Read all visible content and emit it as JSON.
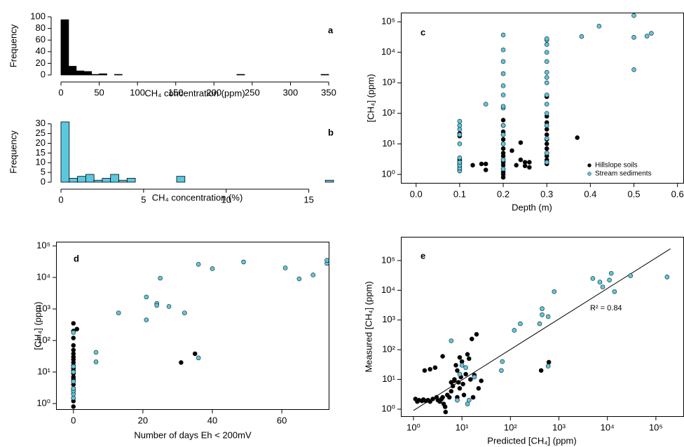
{
  "chart_data": [
    {
      "type": "histogram",
      "label": "a",
      "ylabel": "Frequency",
      "xlabel": "CH₄ concentration (ppm)",
      "color": "#000000",
      "bins": [
        0,
        10,
        20,
        30,
        40,
        50,
        60,
        70,
        80,
        90,
        100,
        110,
        120,
        130,
        140,
        150,
        160,
        170,
        180,
        190,
        200,
        210,
        220,
        230,
        240,
        250,
        260,
        270,
        280,
        290,
        300,
        310,
        320,
        330,
        340,
        350
      ],
      "counts": [
        95,
        15,
        7,
        6,
        1,
        2,
        0,
        1,
        0,
        0,
        0,
        0,
        0,
        0,
        0,
        0,
        0,
        0,
        0,
        0,
        0,
        0,
        0,
        1,
        0,
        0,
        0,
        0,
        0,
        0,
        0,
        0,
        0,
        0,
        1
      ],
      "xlim": [
        0,
        350
      ],
      "ylim": [
        0,
        100
      ],
      "xticks": [
        0,
        50,
        100,
        150,
        200,
        250,
        300,
        350
      ],
      "yticks": [
        0,
        20,
        40,
        60,
        80,
        100
      ]
    },
    {
      "type": "histogram",
      "label": "b",
      "ylabel": "Frequency",
      "xlabel": "CH₄ concentration (%)",
      "color": "#5bc8e0",
      "bins": [
        0,
        0.5,
        1,
        1.5,
        2,
        2.5,
        3,
        3.5,
        4,
        4.5,
        5,
        5.5,
        6,
        6.5,
        7,
        7.5,
        8,
        8.5,
        9,
        9.5,
        10,
        10.5,
        11,
        11.5,
        12,
        12.5,
        13,
        13.5,
        14,
        14.5,
        15,
        15.5,
        16,
        16.5
      ],
      "counts": [
        31,
        2,
        3,
        4,
        1,
        2,
        4,
        1,
        2,
        0,
        0,
        0,
        0,
        0,
        3,
        0,
        0,
        0,
        0,
        0,
        0,
        0,
        0,
        0,
        0,
        0,
        0,
        0,
        0,
        0,
        0,
        0,
        1
      ],
      "xlim": [
        0,
        16.5
      ],
      "ylim": [
        0,
        31
      ],
      "xticks": [
        0,
        5,
        10,
        15
      ],
      "yticks": [
        0,
        5,
        10,
        15,
        20,
        25,
        30
      ]
    },
    {
      "type": "scatter",
      "label": "c",
      "ylabel": "[CH₄] (ppm)",
      "xlabel": "Depth (m)",
      "ylog": true,
      "legend": "lower right",
      "xlim": [
        -0.035,
        0.615
      ],
      "ylim": [
        0.5,
        200000
      ],
      "xticks": [
        {
          "value": 0,
          "label": "0.0"
        },
        0.1,
        0.2,
        0.3,
        0.4,
        0.5,
        0.6
      ],
      "yticks": [
        {
          "value": 1,
          "label": "10⁰"
        },
        {
          "value": 10,
          "label": "10¹"
        },
        {
          "value": 100,
          "label": "10²"
        },
        {
          "value": 1000,
          "label": "10³"
        },
        {
          "value": 10000,
          "label": "10⁴"
        },
        {
          "value": 100000,
          "label": "10⁵"
        }
      ],
      "series": [
        {
          "name": "Hillslope soils",
          "color": "#000000",
          "x": [
            0.1,
            0.1,
            0.1,
            0.1,
            0.1,
            0.1,
            0.1,
            0.1,
            0.1,
            0.13,
            0.15,
            0.16,
            0.16,
            0.2,
            0.2,
            0.2,
            0.2,
            0.2,
            0.2,
            0.2,
            0.2,
            0.2,
            0.2,
            0.2,
            0.2,
            0.2,
            0.2,
            0.2,
            0.2,
            0.22,
            0.23,
            0.24,
            0.24,
            0.25,
            0.25,
            0.26,
            0.26,
            0.3,
            0.3,
            0.3,
            0.3,
            0.3,
            0.3,
            0.3,
            0.3,
            0.3,
            0.3,
            0.3,
            0.3,
            0.3,
            0.37
          ],
          "y": [
            1.3,
            1.5,
            1.7,
            2,
            2.3,
            2.6,
            3,
            18,
            22,
            2,
            2.2,
            1.4,
            2.2,
            0.8,
            1,
            1.2,
            1.5,
            2,
            2.5,
            3,
            4,
            5,
            7,
            10,
            14,
            20,
            25,
            40,
            60,
            6,
            2,
            11,
            3,
            2.5,
            1.9,
            2.5,
            1.7,
            2.2,
            2.6,
            3,
            4,
            5,
            7,
            10,
            14,
            20,
            30,
            50,
            80,
            350,
            16
          ]
        },
        {
          "name": "Stream sediments",
          "color": "#5bc8e0",
          "x": [
            0.1,
            0.1,
            0.1,
            0.1,
            0.1,
            0.1,
            0.1,
            0.1,
            0.1,
            0.1,
            0.16,
            0.2,
            0.2,
            0.2,
            0.2,
            0.2,
            0.2,
            0.2,
            0.2,
            0.2,
            0.2,
            0.2,
            0.2,
            0.2,
            0.3,
            0.3,
            0.3,
            0.3,
            0.3,
            0.3,
            0.3,
            0.3,
            0.3,
            0.3,
            0.3,
            0.3,
            0.3,
            0.3,
            0.3,
            0.38,
            0.42,
            0.5,
            0.5,
            0.5,
            0.53,
            0.54
          ],
          "y": [
            1.3,
            1.6,
            2,
            2.5,
            3.5,
            10,
            20,
            30,
            40,
            55,
            200,
            1.5,
            3,
            10,
            20,
            40,
            150,
            170,
            400,
            800,
            2000,
            5000,
            12000,
            37000,
            2.5,
            5,
            15,
            40,
            100,
            200,
            400,
            1000,
            1500,
            2200,
            5000,
            10000,
            18000,
            25000,
            28000,
            33000,
            72000,
            2700,
            31000,
            160000,
            34000,
            42000
          ]
        }
      ]
    },
    {
      "type": "scatter",
      "label": "d",
      "ylabel": "[CH₄]  (ppm)",
      "xlabel": "Number of days Eh < 200mV",
      "ylog": true,
      "xlim": [
        -5,
        73.7
      ],
      "ylim": [
        0.63,
        136000
      ],
      "xticks": [
        0,
        20,
        40,
        60
      ],
      "yticks": [
        {
          "value": 1,
          "label": "10⁰"
        },
        {
          "value": 10,
          "label": "10¹"
        },
        {
          "value": 100,
          "label": "10²"
        },
        {
          "value": 1000,
          "label": "10³"
        },
        {
          "value": 10000,
          "label": "10⁴"
        },
        {
          "value": 100000,
          "label": "10⁵"
        }
      ],
      "series": [
        {
          "color": "#000000",
          "x": [
            0,
            0,
            0,
            0,
            0,
            0,
            0,
            0,
            0,
            0,
            0,
            0,
            0,
            0,
            0,
            0,
            0,
            0,
            0,
            0,
            0,
            0,
            0,
            1,
            31,
            35
          ],
          "y": [
            0.8,
            1.2,
            1.5,
            2,
            2.5,
            3,
            4,
            5,
            6,
            7,
            9,
            11,
            13,
            16,
            20,
            25,
            30,
            38,
            50,
            70,
            120,
            200,
            350,
            230,
            20,
            38
          ]
        },
        {
          "color": "#5bc8e0",
          "x": [
            0,
            0,
            0,
            0,
            0,
            0,
            0,
            0,
            6.5,
            6.5,
            13,
            21,
            21,
            24,
            24,
            25,
            27.5,
            32,
            36,
            36,
            40,
            49,
            61,
            65,
            69,
            73,
            73
          ],
          "y": [
            1.5,
            2,
            2.5,
            3,
            5,
            10,
            15,
            180,
            42,
            21,
            750,
            2400,
            450,
            1500,
            1300,
            9500,
            1200,
            750,
            26000,
            28,
            19000,
            31000,
            20000,
            9000,
            12000,
            28000,
            35000
          ]
        }
      ]
    },
    {
      "type": "scatter",
      "label": "e",
      "ylabel": "Measured [CH₄] (ppm)",
      "xlabel": "Predicted [CH₄] (ppm)",
      "xlog": true,
      "ylog": true,
      "annotation": "R² = 0.84",
      "xlim": [
        0.55,
        380000
      ],
      "ylim": [
        0.55,
        630000
      ],
      "xticks": [
        {
          "value": 1,
          "label": "10⁰"
        },
        {
          "value": 10,
          "label": "10¹"
        },
        {
          "value": 100,
          "label": "10²"
        },
        {
          "value": 1000,
          "label": "10³"
        },
        {
          "value": 10000,
          "label": "10⁴"
        },
        {
          "value": 100000,
          "label": "10⁵"
        }
      ],
      "yticks": [
        {
          "value": 1,
          "label": "10⁰"
        },
        {
          "value": 10,
          "label": "10¹"
        },
        {
          "value": 100,
          "label": "10²"
        },
        {
          "value": 1000,
          "label": "10³"
        },
        {
          "value": 10000,
          "label": "10⁴"
        },
        {
          "value": 100000,
          "label": "10⁵"
        }
      ],
      "fit_line": {
        "color": "#000000",
        "x": [
          1,
          200000
        ],
        "y": [
          0.9,
          250000
        ]
      },
      "series": [
        {
          "color": "#000000",
          "x": [
            1.1,
            1.2,
            1.3,
            1.5,
            1.6,
            1.8,
            2,
            2.2,
            2.5,
            1.7,
            2.2,
            3,
            3.2,
            3.5,
            3.8,
            4,
            4.2,
            4.5,
            4.6,
            5,
            5.5,
            6,
            6.5,
            7,
            7.5,
            8,
            8.5,
            9,
            9.5,
            10,
            10.5,
            11,
            12,
            13,
            14,
            15,
            16,
            18,
            20,
            22,
            25,
            8,
            4,
            2.8,
            6,
            430,
            620,
            17,
            9,
            7
          ],
          "y": [
            2.2,
            1.8,
            2,
            1.9,
            2.1,
            1.9,
            2,
            1.8,
            2.2,
            20,
            22,
            2.5,
            2,
            1.8,
            2.2,
            2.5,
            1.5,
            1.2,
            0.8,
            3,
            2.5,
            4,
            6,
            10,
            30,
            20,
            8,
            5,
            12,
            40,
            7,
            3,
            15,
            70,
            50,
            10,
            230,
            14,
            330,
            5,
            9,
            2.5,
            60,
            25,
            8,
            20,
            38,
            2.5,
            55,
            9
          ]
        },
        {
          "color": "#5bc8e0",
          "x": [
            5000,
            7000,
            12000,
            11000,
            8000,
            14000,
            30000,
            170000,
            800,
            450,
            450,
            600,
            400,
            160,
            120,
            65,
            68,
            6,
            10,
            12,
            18,
            8,
            13,
            14,
            600,
            9
          ],
          "y": [
            25000,
            19000,
            37000,
            22000,
            13000,
            9000,
            31000,
            28000,
            9000,
            2400,
            1500,
            1300,
            750,
            750,
            450,
            20,
            40,
            200,
            30,
            25,
            12,
            2,
            1.5,
            2,
            28,
            15
          ]
        }
      ]
    }
  ]
}
